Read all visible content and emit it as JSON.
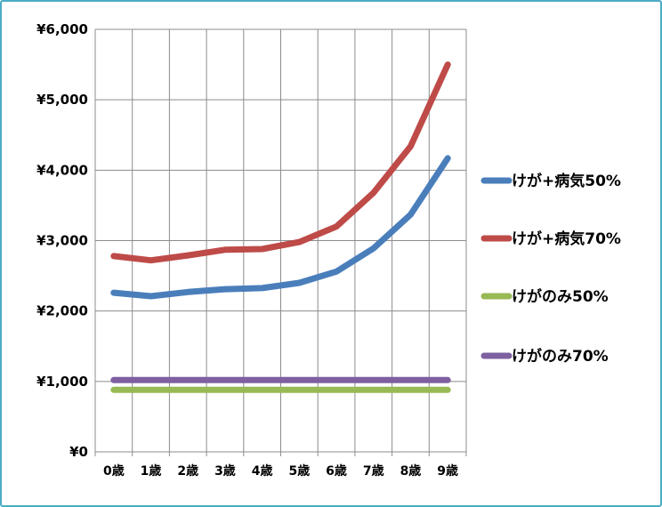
{
  "chart_data": {
    "type": "line",
    "title": "",
    "xlabel": "",
    "ylabel": "",
    "categories": [
      "0歳",
      "1歳",
      "2歳",
      "3歳",
      "4歳",
      "5歳",
      "6歳",
      "7歳",
      "8歳",
      "9歳"
    ],
    "ylim": [
      0,
      6000
    ],
    "yticks": [
      0,
      1000,
      2000,
      3000,
      4000,
      5000,
      6000
    ],
    "ytick_labels": [
      "¥0",
      "¥1,000",
      "¥2,000",
      "¥3,000",
      "¥4,000",
      "¥5,000",
      "¥6,000"
    ],
    "grid": true,
    "legend_position": "right",
    "series": [
      {
        "name": "けが+病気50%",
        "color": "#4a7ebb",
        "values": [
          2260,
          2210,
          2270,
          2310,
          2325,
          2400,
          2560,
          2890,
          3370,
          4170
        ]
      },
      {
        "name": "けが+病気70%",
        "color": "#be4b48",
        "values": [
          2780,
          2720,
          2790,
          2870,
          2880,
          2980,
          3200,
          3680,
          4340,
          5500
        ]
      },
      {
        "name": "けがのみ50%",
        "color": "#98b954",
        "values": [
          880,
          880,
          880,
          880,
          880,
          880,
          880,
          880,
          880,
          880
        ]
      },
      {
        "name": "けがのみ70%",
        "color": "#7d60a0",
        "values": [
          1020,
          1020,
          1020,
          1020,
          1020,
          1020,
          1020,
          1020,
          1020,
          1020
        ]
      }
    ]
  }
}
